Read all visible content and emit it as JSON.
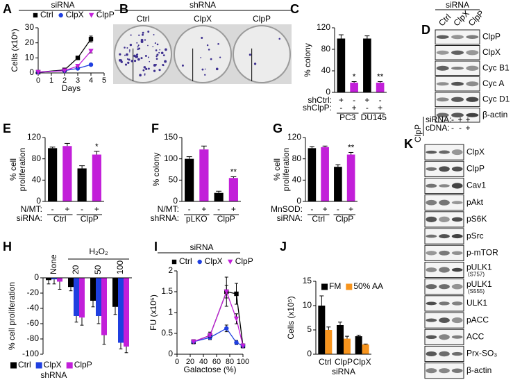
{
  "chart_data": [
    {
      "panel": "A",
      "type": "line",
      "title": "siRNA",
      "ylabel": "Cells (x10⁵)",
      "xlabel": "Days",
      "x": [
        0,
        2,
        3,
        4
      ],
      "xlim": [
        0,
        5
      ],
      "xticks": [
        0,
        1,
        2,
        3,
        4,
        5
      ],
      "ylim": [
        0,
        30
      ],
      "yticks": [
        0,
        10,
        20,
        30
      ],
      "legend": "top",
      "series": [
        {
          "name": "Ctrl",
          "color": "#000000",
          "values": [
            0.5,
            2,
            10,
            22.5
          ],
          "errors": [
            0.3,
            0.4,
            1,
            2
          ]
        },
        {
          "name": "ClpX",
          "color": "#1f3fe0",
          "values": [
            0.5,
            1.5,
            3,
            5.5
          ],
          "errors": [
            0.3,
            0.3,
            0.5,
            0.6
          ]
        },
        {
          "name": "ClpP",
          "color": "#c21fd9",
          "values": [
            0.5,
            1.5,
            4.5,
            14.5
          ],
          "errors": [
            0.3,
            0.3,
            0.5,
            1.2
          ]
        }
      ]
    },
    {
      "panel": "C",
      "type": "bar",
      "ylabel": "% colony",
      "ylim": [
        0,
        120
      ],
      "yticks": [
        0,
        40,
        80,
        120
      ],
      "values": [
        100,
        18,
        100,
        18
      ],
      "errors": [
        7,
        2,
        5,
        2
      ],
      "colors": [
        "#000000",
        "#c21fd9",
        "#000000",
        "#c21fd9"
      ],
      "significance": [
        null,
        "*",
        null,
        "**"
      ],
      "conditions": [
        {
          "label": "shCtrl:",
          "marks": [
            "+",
            "-",
            "+",
            "-"
          ]
        },
        {
          "label": "shClpP:",
          "marks": [
            "-",
            "+",
            "-",
            "+"
          ]
        }
      ],
      "groups": [
        "PC3",
        "DU145"
      ]
    },
    {
      "panel": "E",
      "type": "bar",
      "ylabel": [
        "% cell",
        "proliferation"
      ],
      "ylim": [
        0,
        120
      ],
      "yticks": [
        0,
        40,
        80,
        120
      ],
      "values": [
        100,
        104,
        62,
        88
      ],
      "errors": [
        2,
        5,
        5,
        6
      ],
      "colors": [
        "#000000",
        "#c21fd9",
        "#000000",
        "#c21fd9"
      ],
      "significance": [
        null,
        null,
        null,
        "*"
      ],
      "conditions": [
        {
          "label": "N/MT:",
          "marks": [
            "-",
            "+",
            "-",
            "+"
          ]
        }
      ],
      "group_label": "siRNA:",
      "groups": [
        "Ctrl",
        "ClpP"
      ]
    },
    {
      "panel": "F",
      "type": "bar",
      "ylabel": "% colony",
      "ylim": [
        0,
        150
      ],
      "yticks": [
        0,
        50,
        100,
        150
      ],
      "values": [
        100,
        122,
        20,
        55
      ],
      "errors": [
        5,
        8,
        4,
        3
      ],
      "colors": [
        "#000000",
        "#c21fd9",
        "#000000",
        "#c21fd9"
      ],
      "significance": [
        null,
        null,
        null,
        "**"
      ],
      "conditions": [
        {
          "label": "N/MT:",
          "marks": [
            "-",
            "+",
            "-",
            "+"
          ]
        }
      ],
      "group_label": "shRNA:",
      "groups": [
        "pLKO",
        "ClpP"
      ]
    },
    {
      "panel": "G",
      "type": "bar",
      "ylabel": [
        "% cell",
        "proliferation"
      ],
      "ylim": [
        0,
        120
      ],
      "yticks": [
        0,
        40,
        80,
        120
      ],
      "values": [
        100,
        102,
        65,
        88
      ],
      "errors": [
        3,
        2,
        4,
        4
      ],
      "colors": [
        "#000000",
        "#c21fd9",
        "#000000",
        "#c21fd9"
      ],
      "significance": [
        null,
        null,
        null,
        "**"
      ],
      "conditions": [
        {
          "label": "MnSOD:",
          "marks": [
            "-",
            "+",
            "-",
            "+"
          ]
        }
      ],
      "group_label": "siRNA:",
      "groups": [
        "Ctrl",
        "ClpP"
      ]
    },
    {
      "panel": "H",
      "type": "bar",
      "ylabel": "% cell proliferation",
      "ylim": [
        -100,
        0
      ],
      "yticks": [
        0,
        -20,
        -40,
        -60,
        -80,
        -100
      ],
      "categories": [
        "None",
        "20",
        "50",
        "100"
      ],
      "category_header": "H₂O₂",
      "legend": "bottom",
      "legend_title": "shRNA",
      "series": [
        {
          "name": "Ctrl",
          "color": "#000000",
          "values": [
            -3,
            -12,
            -30,
            -38
          ],
          "errors": [
            5,
            5,
            8,
            10
          ]
        },
        {
          "name": "ClpX",
          "color": "#1f3fe0",
          "values": [
            -2,
            -50,
            -50,
            -85
          ],
          "errors": [
            6,
            8,
            10,
            8
          ]
        },
        {
          "name": "ClpP",
          "color": "#c21fd9",
          "values": [
            -5,
            -52,
            -75,
            -90
          ],
          "errors": [
            10,
            10,
            12,
            8
          ]
        }
      ]
    },
    {
      "panel": "I",
      "type": "line",
      "title": "siRNA",
      "ylabel": "FU (x10⁵)",
      "xlabel": "Galactose (%)",
      "x": [
        25,
        50,
        75,
        90,
        100
      ],
      "xlim": [
        0,
        100
      ],
      "xticks": [
        0,
        20,
        40,
        60,
        80,
        100
      ],
      "ylim": [
        0,
        2
      ],
      "yticks": [
        0,
        0.5,
        1,
        1.5,
        2
      ],
      "legend": "top",
      "series": [
        {
          "name": "Ctrl",
          "color": "#000000",
          "values": [
            0.3,
            0.45,
            1.5,
            1.45,
            0.2
          ],
          "errors": [
            0.05,
            0.08,
            0.35,
            0.25,
            0.05
          ]
        },
        {
          "name": "ClpX",
          "color": "#1f3fe0",
          "values": [
            0.3,
            0.4,
            0.62,
            0.28,
            0.2
          ],
          "errors": [
            0.03,
            0.05,
            0.08,
            0.05,
            0.03
          ]
        },
        {
          "name": "ClpP",
          "color": "#c21fd9",
          "values": [
            0.3,
            0.45,
            1.5,
            0.85,
            0.2
          ],
          "errors": [
            0.05,
            0.05,
            0.15,
            0.12,
            0.03
          ]
        }
      ]
    },
    {
      "panel": "J",
      "type": "bar",
      "ylabel": "Cells (x10⁵)",
      "xlabel": "siRNA",
      "ylim": [
        0,
        15
      ],
      "yticks": [
        0,
        5,
        10,
        15
      ],
      "categories": [
        "Ctrl",
        "ClpP",
        "ClpX"
      ],
      "legend": "top",
      "series": [
        {
          "name": "FM",
          "color": "#000000",
          "values": [
            10,
            6,
            3.7
          ],
          "errors": [
            2,
            0.6,
            0.2
          ]
        },
        {
          "name": "50% AA",
          "color": "#f7941d",
          "values": [
            5,
            3.2,
            2
          ],
          "errors": [
            0.6,
            0.5,
            0.1
          ]
        }
      ]
    }
  ],
  "colonies": {
    "panel": "B",
    "header": "shRNA",
    "labels": [
      "Ctrl",
      "ClpX",
      "ClpP"
    ]
  },
  "blots": [
    {
      "panel": "D",
      "header": "siRNA",
      "lanes": [
        "Ctrl",
        "ClpX",
        "ClpP"
      ],
      "rows": [
        "ClpP",
        "ClpX",
        "Cyc B1",
        "Cyc A",
        "Cyc D1",
        "β-actin"
      ]
    },
    {
      "panel": "K",
      "header": "ClpP",
      "conditions": [
        {
          "label": "siRNA:",
          "marks": [
            "-",
            "+",
            "+"
          ]
        },
        {
          "label": "cDNA:",
          "marks": [
            "-",
            "-",
            "+"
          ]
        }
      ],
      "rows": [
        "ClpX",
        "ClpP",
        "Cav1",
        "pAkt",
        "pS6K",
        "pSrc",
        "p-mTOR",
        {
          "label": "pULK1",
          "site": "(S757)"
        },
        {
          "label": "pULK1",
          "site": "(S555)"
        },
        "ULK1",
        "pACC",
        "ACC",
        "Prx-SO₃",
        "β-actin"
      ]
    }
  ]
}
